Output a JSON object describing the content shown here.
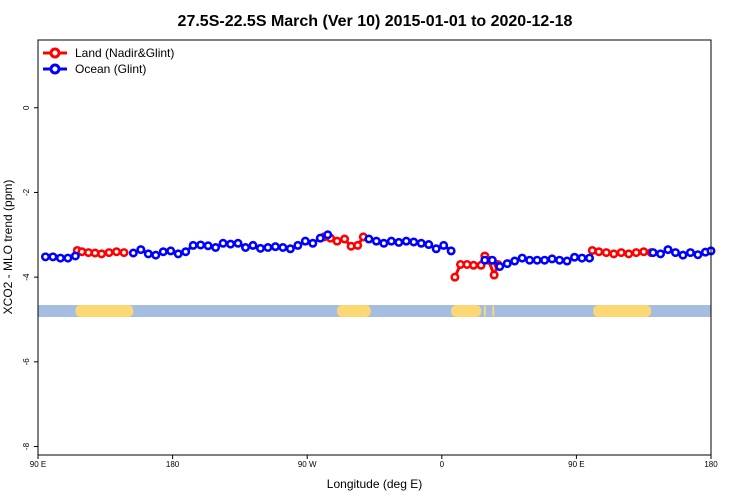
{
  "chart_data": {
    "type": "line",
    "title": "27.5S-22.5S March (Ver 10)   2015-01-01 to 2020-12-18",
    "xlabel": "Longitude (deg E)",
    "ylabel": "XCO2 - MLO trend (ppm)",
    "xlim": [
      90,
      450
    ],
    "ylim": [
      -8.2,
      1.6
    ],
    "x_ticks": [
      {
        "value": 90,
        "label": "90 E"
      },
      {
        "value": 162,
        "label": "180"
      },
      {
        "value": 234,
        "label": "90 W"
      },
      {
        "value": 306,
        "label": "0"
      },
      {
        "value": 378,
        "label": "90 E"
      },
      {
        "value": 450,
        "label": "180"
      }
    ],
    "y_ticks": [
      {
        "value": 0,
        "label": "0"
      },
      {
        "value": -2,
        "label": "-2"
      },
      {
        "value": -4,
        "label": "-4"
      },
      {
        "value": -6,
        "label": "-6"
      },
      {
        "value": -8,
        "label": "-8"
      }
    ],
    "legend": [
      {
        "label": "Land (Nadir&Glint)",
        "color": "#ff0000"
      },
      {
        "label": "Ocean (Glint)",
        "color": "#0000ff"
      }
    ],
    "land_strip": {
      "y": -4.8,
      "ocean_color": "#a4bde0",
      "land_color": "#fcd875",
      "land_segments": [
        [
          110,
          141
        ],
        [
          250,
          268
        ],
        [
          311,
          327
        ],
        [
          328.5,
          329.5
        ],
        [
          333,
          334
        ],
        [
          387,
          418
        ]
      ]
    },
    "series": [
      {
        "name": "Land (Nadir&Glint)",
        "color": "#ff0000",
        "segments": [
          [
            [
              111,
              -3.37
            ],
            [
              113.5,
              -3.4
            ],
            [
              117,
              -3.42
            ],
            [
              120.5,
              -3.43
            ],
            [
              124,
              -3.45
            ],
            [
              128,
              -3.42
            ],
            [
              132,
              -3.4
            ],
            [
              136,
              -3.42
            ]
          ],
          [
            [
              243,
              -3.05
            ],
            [
              246.5,
              -3.08
            ],
            [
              250,
              -3.15
            ],
            [
              254,
              -3.1
            ],
            [
              257.5,
              -3.27
            ],
            [
              261,
              -3.25
            ],
            [
              264,
              -3.05
            ]
          ],
          [
            [
              313,
              -4.0
            ],
            [
              316,
              -3.7
            ],
            [
              319.5,
              -3.7
            ],
            [
              323,
              -3.72
            ],
            [
              327,
              -3.72
            ],
            [
              329,
              -3.5
            ],
            [
              331,
              -3.6
            ],
            [
              334,
              -3.95
            ],
            [
              336,
              -3.7
            ]
          ],
          [
            [
              386.5,
              -3.37
            ],
            [
              390,
              -3.4
            ],
            [
              394,
              -3.42
            ],
            [
              398,
              -3.45
            ],
            [
              402,
              -3.42
            ],
            [
              406,
              -3.45
            ],
            [
              410,
              -3.42
            ],
            [
              414,
              -3.4
            ],
            [
              418,
              -3.42
            ]
          ]
        ]
      },
      {
        "name": "Ocean (Glint)",
        "color": "#0000ff",
        "x": [
          94,
          98,
          102,
          106,
          110,
          141,
          145,
          149,
          153,
          157,
          161,
          165,
          169,
          173,
          177,
          181,
          185,
          189,
          193,
          197,
          201,
          205,
          209,
          213,
          217,
          221,
          225,
          229,
          233,
          237,
          241,
          245,
          267,
          271,
          275,
          279,
          283,
          287,
          291,
          295,
          299,
          303,
          307,
          311,
          329,
          333,
          337,
          341,
          345,
          349,
          353,
          357,
          361,
          365,
          369,
          373,
          377,
          381,
          385,
          419,
          423,
          427,
          431,
          435,
          439,
          443,
          447,
          450
        ],
        "y": [
          -3.52,
          -3.52,
          -3.55,
          -3.55,
          -3.5,
          -3.43,
          -3.35,
          -3.45,
          -3.48,
          -3.4,
          -3.38,
          -3.45,
          -3.4,
          -3.25,
          -3.24,
          -3.26,
          -3.3,
          -3.2,
          -3.22,
          -3.2,
          -3.3,
          -3.25,
          -3.32,
          -3.3,
          -3.28,
          -3.3,
          -3.33,
          -3.25,
          -3.15,
          -3.2,
          -3.08,
          -3.0,
          -3.1,
          -3.15,
          -3.2,
          -3.15,
          -3.18,
          -3.15,
          -3.17,
          -3.2,
          -3.23,
          -3.33,
          -3.25,
          -3.38,
          -3.6,
          -3.6,
          -3.75,
          -3.68,
          -3.62,
          -3.55,
          -3.6,
          -3.6,
          -3.6,
          -3.57,
          -3.6,
          -3.62,
          -3.53,
          -3.55,
          -3.55,
          -3.42,
          -3.45,
          -3.35,
          -3.42,
          -3.48,
          -3.42,
          -3.47,
          -3.41,
          -3.38
        ]
      }
    ]
  }
}
